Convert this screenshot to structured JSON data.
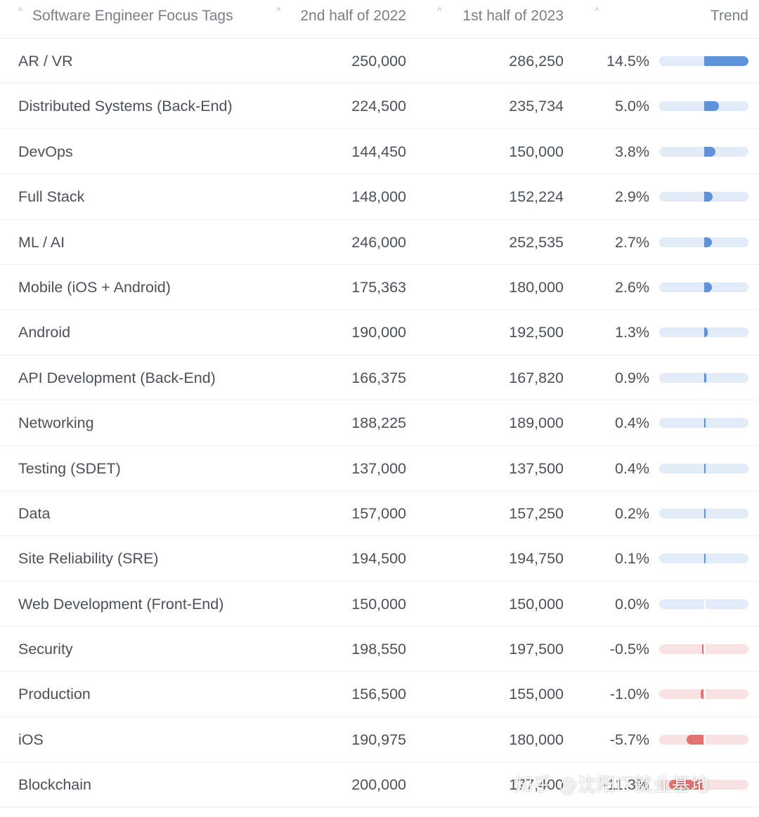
{
  "table": {
    "columns": {
      "tag": "Software Engineer Focus Tags",
      "h2_2022": "2nd half of 2022",
      "h1_2023": "1st half of 2023",
      "trend": "Trend"
    },
    "rows": [
      {
        "tag": "AR / VR",
        "h2_2022": "250,000",
        "h1_2023": "286,250",
        "trend": "14.5%",
        "trend_value": 14.5
      },
      {
        "tag": "Distributed Systems (Back-End)",
        "h2_2022": "224,500",
        "h1_2023": "235,734",
        "trend": "5.0%",
        "trend_value": 5.0
      },
      {
        "tag": "DevOps",
        "h2_2022": "144,450",
        "h1_2023": "150,000",
        "trend": "3.8%",
        "trend_value": 3.8
      },
      {
        "tag": "Full Stack",
        "h2_2022": "148,000",
        "h1_2023": "152,224",
        "trend": "2.9%",
        "trend_value": 2.9
      },
      {
        "tag": "ML / AI",
        "h2_2022": "246,000",
        "h1_2023": "252,535",
        "trend": "2.7%",
        "trend_value": 2.7
      },
      {
        "tag": "Mobile (iOS + Android)",
        "h2_2022": "175,363",
        "h1_2023": "180,000",
        "trend": "2.6%",
        "trend_value": 2.6
      },
      {
        "tag": "Android",
        "h2_2022": "190,000",
        "h1_2023": "192,500",
        "trend": "1.3%",
        "trend_value": 1.3
      },
      {
        "tag": "API Development (Back-End)",
        "h2_2022": "166,375",
        "h1_2023": "167,820",
        "trend": "0.9%",
        "trend_value": 0.9
      },
      {
        "tag": "Networking",
        "h2_2022": "188,225",
        "h1_2023": "189,000",
        "trend": "0.4%",
        "trend_value": 0.4
      },
      {
        "tag": "Testing (SDET)",
        "h2_2022": "137,000",
        "h1_2023": "137,500",
        "trend": "0.4%",
        "trend_value": 0.4
      },
      {
        "tag": "Data",
        "h2_2022": "157,000",
        "h1_2023": "157,250",
        "trend": "0.2%",
        "trend_value": 0.2
      },
      {
        "tag": "Site Reliability (SRE)",
        "h2_2022": "194,500",
        "h1_2023": "194,750",
        "trend": "0.1%",
        "trend_value": 0.1
      },
      {
        "tag": "Web Development (Front-End)",
        "h2_2022": "150,000",
        "h1_2023": "150,000",
        "trend": "0.0%",
        "trend_value": 0.0
      },
      {
        "tag": "Security",
        "h2_2022": "198,550",
        "h1_2023": "197,500",
        "trend": "-0.5%",
        "trend_value": -0.5
      },
      {
        "tag": "Production",
        "h2_2022": "156,500",
        "h1_2023": "155,000",
        "trend": "-1.0%",
        "trend_value": -1.0
      },
      {
        "tag": "iOS",
        "h2_2022": "190,975",
        "h1_2023": "180,000",
        "trend": "-5.7%",
        "trend_value": -5.7
      },
      {
        "tag": "Blockchain",
        "h2_2022": "200,000",
        "h1_2023": "177,400",
        "trend": "-11.3%",
        "trend_value": -11.3
      }
    ],
    "trend_scale_max": 14.5
  },
  "watermark": "知乎 @沈阳IT就业基地",
  "colors": {
    "positive_bar": "#5d93d8",
    "positive_track": "#e1ecf8",
    "negative_bar": "#e07272",
    "negative_track": "#f9e2e2"
  }
}
